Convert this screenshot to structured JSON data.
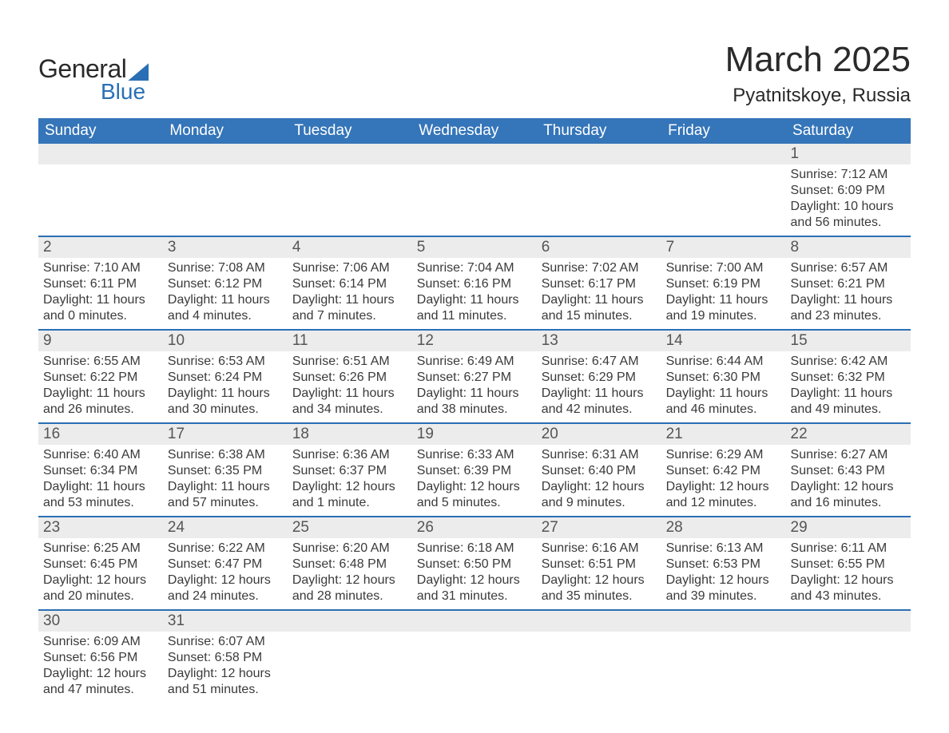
{
  "logo": {
    "text1": "General",
    "text2": "Blue",
    "shape_color": "#2a6fb5"
  },
  "title": "March 2025",
  "location": "Pyatnitskoye, Russia",
  "colors": {
    "header_bg": "#3575b9",
    "header_text": "#ffffff",
    "daynum_bg": "#ececec",
    "row_border": "#2a6fb5",
    "text": "#3a3a3a",
    "background": "#ffffff"
  },
  "typography": {
    "title_fontsize": 44,
    "location_fontsize": 24,
    "th_fontsize": 19,
    "daynum_fontsize": 19,
    "body_fontsize": 16
  },
  "day_headers": [
    "Sunday",
    "Monday",
    "Tuesday",
    "Wednesday",
    "Thursday",
    "Friday",
    "Saturday"
  ],
  "weeks": [
    [
      null,
      null,
      null,
      null,
      null,
      null,
      {
        "n": "1",
        "sr": "Sunrise: 7:12 AM",
        "ss": "Sunset: 6:09 PM",
        "dl": "Daylight: 10 hours and 56 minutes."
      }
    ],
    [
      {
        "n": "2",
        "sr": "Sunrise: 7:10 AM",
        "ss": "Sunset: 6:11 PM",
        "dl": "Daylight: 11 hours and 0 minutes."
      },
      {
        "n": "3",
        "sr": "Sunrise: 7:08 AM",
        "ss": "Sunset: 6:12 PM",
        "dl": "Daylight: 11 hours and 4 minutes."
      },
      {
        "n": "4",
        "sr": "Sunrise: 7:06 AM",
        "ss": "Sunset: 6:14 PM",
        "dl": "Daylight: 11 hours and 7 minutes."
      },
      {
        "n": "5",
        "sr": "Sunrise: 7:04 AM",
        "ss": "Sunset: 6:16 PM",
        "dl": "Daylight: 11 hours and 11 minutes."
      },
      {
        "n": "6",
        "sr": "Sunrise: 7:02 AM",
        "ss": "Sunset: 6:17 PM",
        "dl": "Daylight: 11 hours and 15 minutes."
      },
      {
        "n": "7",
        "sr": "Sunrise: 7:00 AM",
        "ss": "Sunset: 6:19 PM",
        "dl": "Daylight: 11 hours and 19 minutes."
      },
      {
        "n": "8",
        "sr": "Sunrise: 6:57 AM",
        "ss": "Sunset: 6:21 PM",
        "dl": "Daylight: 11 hours and 23 minutes."
      }
    ],
    [
      {
        "n": "9",
        "sr": "Sunrise: 6:55 AM",
        "ss": "Sunset: 6:22 PM",
        "dl": "Daylight: 11 hours and 26 minutes."
      },
      {
        "n": "10",
        "sr": "Sunrise: 6:53 AM",
        "ss": "Sunset: 6:24 PM",
        "dl": "Daylight: 11 hours and 30 minutes."
      },
      {
        "n": "11",
        "sr": "Sunrise: 6:51 AM",
        "ss": "Sunset: 6:26 PM",
        "dl": "Daylight: 11 hours and 34 minutes."
      },
      {
        "n": "12",
        "sr": "Sunrise: 6:49 AM",
        "ss": "Sunset: 6:27 PM",
        "dl": "Daylight: 11 hours and 38 minutes."
      },
      {
        "n": "13",
        "sr": "Sunrise: 6:47 AM",
        "ss": "Sunset: 6:29 PM",
        "dl": "Daylight: 11 hours and 42 minutes."
      },
      {
        "n": "14",
        "sr": "Sunrise: 6:44 AM",
        "ss": "Sunset: 6:30 PM",
        "dl": "Daylight: 11 hours and 46 minutes."
      },
      {
        "n": "15",
        "sr": "Sunrise: 6:42 AM",
        "ss": "Sunset: 6:32 PM",
        "dl": "Daylight: 11 hours and 49 minutes."
      }
    ],
    [
      {
        "n": "16",
        "sr": "Sunrise: 6:40 AM",
        "ss": "Sunset: 6:34 PM",
        "dl": "Daylight: 11 hours and 53 minutes."
      },
      {
        "n": "17",
        "sr": "Sunrise: 6:38 AM",
        "ss": "Sunset: 6:35 PM",
        "dl": "Daylight: 11 hours and 57 minutes."
      },
      {
        "n": "18",
        "sr": "Sunrise: 6:36 AM",
        "ss": "Sunset: 6:37 PM",
        "dl": "Daylight: 12 hours and 1 minute."
      },
      {
        "n": "19",
        "sr": "Sunrise: 6:33 AM",
        "ss": "Sunset: 6:39 PM",
        "dl": "Daylight: 12 hours and 5 minutes."
      },
      {
        "n": "20",
        "sr": "Sunrise: 6:31 AM",
        "ss": "Sunset: 6:40 PM",
        "dl": "Daylight: 12 hours and 9 minutes."
      },
      {
        "n": "21",
        "sr": "Sunrise: 6:29 AM",
        "ss": "Sunset: 6:42 PM",
        "dl": "Daylight: 12 hours and 12 minutes."
      },
      {
        "n": "22",
        "sr": "Sunrise: 6:27 AM",
        "ss": "Sunset: 6:43 PM",
        "dl": "Daylight: 12 hours and 16 minutes."
      }
    ],
    [
      {
        "n": "23",
        "sr": "Sunrise: 6:25 AM",
        "ss": "Sunset: 6:45 PM",
        "dl": "Daylight: 12 hours and 20 minutes."
      },
      {
        "n": "24",
        "sr": "Sunrise: 6:22 AM",
        "ss": "Sunset: 6:47 PM",
        "dl": "Daylight: 12 hours and 24 minutes."
      },
      {
        "n": "25",
        "sr": "Sunrise: 6:20 AM",
        "ss": "Sunset: 6:48 PM",
        "dl": "Daylight: 12 hours and 28 minutes."
      },
      {
        "n": "26",
        "sr": "Sunrise: 6:18 AM",
        "ss": "Sunset: 6:50 PM",
        "dl": "Daylight: 12 hours and 31 minutes."
      },
      {
        "n": "27",
        "sr": "Sunrise: 6:16 AM",
        "ss": "Sunset: 6:51 PM",
        "dl": "Daylight: 12 hours and 35 minutes."
      },
      {
        "n": "28",
        "sr": "Sunrise: 6:13 AM",
        "ss": "Sunset: 6:53 PM",
        "dl": "Daylight: 12 hours and 39 minutes."
      },
      {
        "n": "29",
        "sr": "Sunrise: 6:11 AM",
        "ss": "Sunset: 6:55 PM",
        "dl": "Daylight: 12 hours and 43 minutes."
      }
    ],
    [
      {
        "n": "30",
        "sr": "Sunrise: 6:09 AM",
        "ss": "Sunset: 6:56 PM",
        "dl": "Daylight: 12 hours and 47 minutes."
      },
      {
        "n": "31",
        "sr": "Sunrise: 6:07 AM",
        "ss": "Sunset: 6:58 PM",
        "dl": "Daylight: 12 hours and 51 minutes."
      },
      null,
      null,
      null,
      null,
      null
    ]
  ]
}
